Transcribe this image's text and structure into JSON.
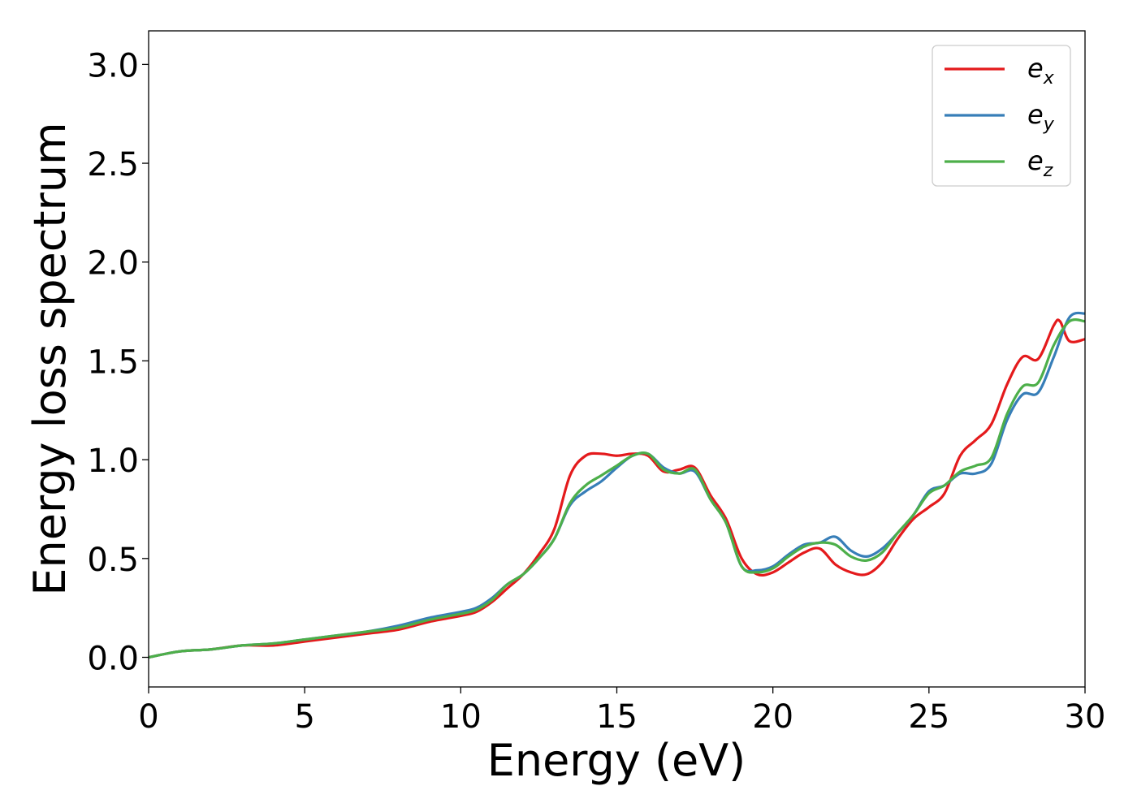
{
  "chart_data": {
    "type": "line",
    "xlabel": "Energy (eV)",
    "ylabel": "Energy loss spectrum",
    "xlim": [
      0,
      30
    ],
    "ylim": [
      -0.15,
      3.17
    ],
    "xticks": [
      0,
      5,
      10,
      15,
      20,
      25,
      30
    ],
    "xtick_labels": [
      "0",
      "5",
      "10",
      "15",
      "20",
      "25",
      "30"
    ],
    "yticks": [
      0.0,
      0.5,
      1.0,
      1.5,
      2.0,
      2.5,
      3.0
    ],
    "ytick_labels": [
      "0.0",
      "0.5",
      "1.0",
      "1.5",
      "2.0",
      "2.5",
      "3.0"
    ],
    "grid": false,
    "legend_position": "top-right",
    "series": [
      {
        "name": "e_x",
        "label_main": "e",
        "label_sub": "x",
        "color": "#e41a1c",
        "x": [
          0,
          1,
          2,
          3,
          4,
          5,
          6,
          7,
          8,
          9,
          10,
          10.5,
          11,
          11.5,
          12,
          12.5,
          13,
          13.5,
          14,
          14.5,
          15,
          15.5,
          16,
          16.5,
          17,
          17.5,
          18,
          18.5,
          19,
          19.5,
          20,
          20.5,
          21,
          21.5,
          22,
          22.5,
          23,
          23.5,
          24,
          24.5,
          25,
          25.5,
          26,
          26.5,
          27,
          27.5,
          28,
          28.5,
          29,
          29.2,
          29.5,
          30
        ],
        "y": [
          0.0,
          0.03,
          0.04,
          0.06,
          0.06,
          0.08,
          0.1,
          0.12,
          0.14,
          0.18,
          0.21,
          0.23,
          0.28,
          0.35,
          0.42,
          0.52,
          0.65,
          0.92,
          1.02,
          1.03,
          1.02,
          1.03,
          1.02,
          0.94,
          0.95,
          0.96,
          0.82,
          0.7,
          0.5,
          0.42,
          0.43,
          0.48,
          0.53,
          0.55,
          0.47,
          0.43,
          0.42,
          0.48,
          0.6,
          0.7,
          0.76,
          0.83,
          1.02,
          1.1,
          1.18,
          1.38,
          1.52,
          1.51,
          1.68,
          1.7,
          1.6,
          1.61
        ]
      },
      {
        "name": "e_y",
        "label_main": "e",
        "label_sub": "y",
        "color": "#377eb8",
        "x": [
          0,
          1,
          2,
          3,
          4,
          5,
          6,
          7,
          8,
          9,
          10,
          10.5,
          11,
          11.5,
          12,
          12.5,
          13,
          13.5,
          14,
          14.5,
          15,
          15.5,
          16,
          16.5,
          17,
          17.5,
          18,
          18.5,
          19,
          19.5,
          20,
          20.5,
          21,
          21.5,
          22,
          22.5,
          23,
          23.5,
          24,
          24.5,
          25,
          25.5,
          26,
          26.5,
          27,
          27.5,
          28,
          28.5,
          29,
          29.5,
          30
        ],
        "y": [
          0.0,
          0.03,
          0.04,
          0.06,
          0.07,
          0.09,
          0.11,
          0.13,
          0.16,
          0.2,
          0.23,
          0.25,
          0.3,
          0.37,
          0.42,
          0.5,
          0.6,
          0.77,
          0.84,
          0.89,
          0.96,
          1.02,
          1.03,
          0.96,
          0.93,
          0.94,
          0.8,
          0.68,
          0.46,
          0.44,
          0.46,
          0.52,
          0.57,
          0.58,
          0.61,
          0.54,
          0.51,
          0.55,
          0.63,
          0.72,
          0.84,
          0.87,
          0.93,
          0.93,
          0.98,
          1.2,
          1.33,
          1.34,
          1.52,
          1.72,
          1.74
        ]
      },
      {
        "name": "e_z",
        "label_main": "e",
        "label_sub": "z",
        "color": "#4daf4a",
        "x": [
          0,
          1,
          2,
          3,
          4,
          5,
          6,
          7,
          8,
          9,
          10,
          10.5,
          11,
          11.5,
          12,
          12.5,
          13,
          13.5,
          14,
          14.5,
          15,
          15.5,
          16,
          16.5,
          17,
          17.5,
          18,
          18.5,
          19,
          19.5,
          20,
          20.5,
          21,
          21.5,
          22,
          22.5,
          23,
          23.5,
          24,
          24.5,
          25,
          25.5,
          26,
          26.5,
          27,
          27.5,
          28,
          28.5,
          29,
          29.5,
          30
        ],
        "y": [
          0.0,
          0.03,
          0.04,
          0.06,
          0.07,
          0.09,
          0.11,
          0.13,
          0.15,
          0.19,
          0.22,
          0.24,
          0.29,
          0.37,
          0.42,
          0.5,
          0.6,
          0.78,
          0.87,
          0.92,
          0.97,
          1.02,
          1.03,
          0.95,
          0.93,
          0.95,
          0.8,
          0.68,
          0.46,
          0.43,
          0.45,
          0.51,
          0.56,
          0.58,
          0.57,
          0.51,
          0.49,
          0.53,
          0.63,
          0.72,
          0.83,
          0.87,
          0.94,
          0.97,
          1.01,
          1.23,
          1.37,
          1.39,
          1.58,
          1.7,
          1.7
        ]
      }
    ]
  }
}
